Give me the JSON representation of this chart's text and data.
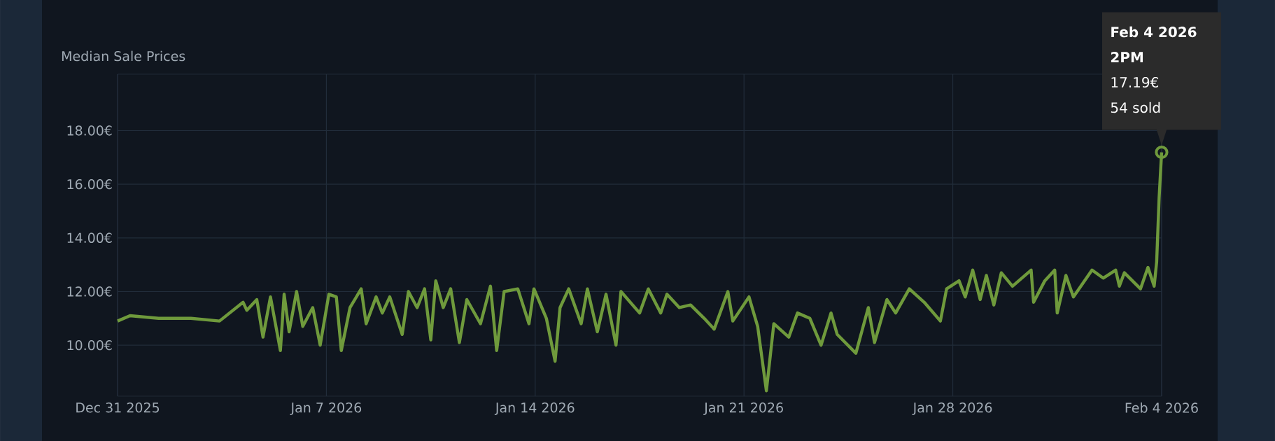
{
  "chart_data": {
    "type": "line",
    "title": "Median Sale Prices",
    "xlim": [
      "2025-12-31T14:00",
      "2026-02-04T14:00"
    ],
    "xticks": [
      {
        "value": "2025-12-31T14:00",
        "label": "Dec 31 2025"
      },
      {
        "value": "2026-01-07T14:00",
        "label": "Jan 7 2026"
      },
      {
        "value": "2026-01-14T14:00",
        "label": "Jan 14 2026"
      },
      {
        "value": "2026-01-21T14:00",
        "label": "Jan 21 2026"
      },
      {
        "value": "2026-01-28T14:00",
        "label": "Jan 28 2026"
      },
      {
        "value": "2026-02-04T14:00",
        "label": "Feb 4 2026"
      }
    ],
    "ylim": [
      8.1,
      20.1
    ],
    "yticks": [
      {
        "value": 10,
        "label": "10.00€"
      },
      {
        "value": 12,
        "label": "12.00€"
      },
      {
        "value": 14,
        "label": "14.00€"
      },
      {
        "value": 16,
        "label": "16.00€"
      },
      {
        "value": 18,
        "label": "18.00€"
      }
    ],
    "grid": true,
    "series": [
      {
        "color": "#6f9a3c",
        "x": [
          "2025-12-31T14:00",
          "2026-01-01T00:00",
          "2026-01-01T23:00",
          "2026-01-03T01:00",
          "2026-01-04T00:00",
          "2026-01-04T19:00",
          "2026-01-04T22:00",
          "2026-01-05T06:00",
          "2026-01-05T11:00",
          "2026-01-05T17:00",
          "2026-01-06T01:00",
          "2026-01-06T04:00",
          "2026-01-06T08:00",
          "2026-01-06T14:00",
          "2026-01-06T19:00",
          "2026-01-07T03:00",
          "2026-01-07T09:00",
          "2026-01-07T16:00",
          "2026-01-07T22:00",
          "2026-01-08T02:00",
          "2026-01-08T09:00",
          "2026-01-08T18:00",
          "2026-01-08T22:00",
          "2026-01-09T06:00",
          "2026-01-09T11:00",
          "2026-01-09T17:00",
          "2026-01-10T03:00",
          "2026-01-10T08:00",
          "2026-01-10T15:00",
          "2026-01-10T21:00",
          "2026-01-11T02:00",
          "2026-01-11T06:00",
          "2026-01-11T12:00",
          "2026-01-11T18:00",
          "2026-01-12T01:00",
          "2026-01-12T07:00",
          "2026-01-12T18:00",
          "2026-01-13T02:00",
          "2026-01-13T07:00",
          "2026-01-13T13:00",
          "2026-01-14T00:00",
          "2026-01-14T09:00",
          "2026-01-14T13:00",
          "2026-01-14T23:00",
          "2026-01-15T06:00",
          "2026-01-15T10:00",
          "2026-01-15T17:00",
          "2026-01-16T03:00",
          "2026-01-16T08:00",
          "2026-01-16T16:00",
          "2026-01-16T23:00",
          "2026-01-17T07:00",
          "2026-01-17T11:00",
          "2026-01-18T02:00",
          "2026-01-18T09:00",
          "2026-01-18T19:00",
          "2026-01-19T00:00",
          "2026-01-19T10:00",
          "2026-01-19T19:00",
          "2026-01-20T06:00",
          "2026-01-20T14:00",
          "2026-01-21T01:00",
          "2026-01-21T05:00",
          "2026-01-21T18:00",
          "2026-01-22T01:00",
          "2026-01-22T08:00",
          "2026-01-22T14:00",
          "2026-01-23T02:00",
          "2026-01-23T09:00",
          "2026-01-23T19:00",
          "2026-01-24T04:00",
          "2026-01-24T12:00",
          "2026-01-24T17:00",
          "2026-01-25T08:00",
          "2026-01-25T18:00",
          "2026-01-25T23:00",
          "2026-01-26T09:00",
          "2026-01-26T16:00",
          "2026-01-27T03:00",
          "2026-01-27T15:00",
          "2026-01-28T04:00",
          "2026-01-28T09:00",
          "2026-01-28T19:00",
          "2026-01-29T00:00",
          "2026-01-29T06:00",
          "2026-01-29T12:00",
          "2026-01-29T17:00",
          "2026-01-29T23:00",
          "2026-01-30T05:00",
          "2026-01-30T14:00",
          "2026-01-31T05:00",
          "2026-01-31T07:00",
          "2026-01-31T16:00",
          "2026-02-01T00:00",
          "2026-02-01T02:00",
          "2026-02-01T09:00",
          "2026-02-01T15:00",
          "2026-02-02T06:00",
          "2026-02-02T15:00",
          "2026-02-03T01:00",
          "2026-02-03T04:00",
          "2026-02-03T08:00",
          "2026-02-03T21:00",
          "2026-02-04T03:00",
          "2026-02-04T08:00",
          "2026-02-04T10:00",
          "2026-02-04T12:00",
          "2026-02-04T14:00"
        ],
        "values": [
          10.9,
          11.1,
          11.0,
          11.0,
          10.9,
          11.6,
          11.3,
          11.7,
          10.3,
          11.8,
          9.8,
          11.9,
          10.5,
          12.0,
          10.7,
          11.4,
          10.0,
          11.9,
          11.8,
          9.8,
          11.4,
          12.1,
          10.8,
          11.8,
          11.2,
          11.8,
          10.4,
          12.0,
          11.4,
          12.1,
          10.2,
          12.4,
          11.4,
          12.1,
          10.1,
          11.7,
          10.8,
          12.2,
          9.8,
          12.0,
          12.1,
          10.8,
          12.1,
          11.0,
          9.4,
          11.4,
          12.1,
          10.8,
          12.1,
          10.5,
          11.9,
          10.0,
          12.0,
          11.2,
          12.1,
          11.2,
          11.9,
          11.4,
          11.5,
          11.0,
          10.6,
          12.0,
          10.9,
          11.8,
          10.7,
          8.3,
          10.8,
          10.3,
          11.2,
          11.0,
          10.0,
          11.2,
          10.4,
          9.7,
          11.4,
          10.1,
          11.7,
          11.2,
          12.1,
          11.6,
          10.9,
          12.1,
          12.4,
          11.8,
          12.8,
          11.7,
          12.6,
          11.5,
          12.7,
          12.2,
          12.8,
          11.6,
          12.4,
          12.8,
          11.2,
          12.6,
          11.8,
          12.8,
          12.5,
          12.8,
          12.2,
          12.7,
          12.1,
          12.9,
          12.2,
          13.1,
          15.5,
          17.19
        ]
      }
    ],
    "annotations": [
      "Feb 4 2026",
      "2PM",
      "17.19€",
      {
        "text": "54 sold",
        "x": "2026-02-04T14:00",
        "y": 17.19
      }
    ]
  }
}
